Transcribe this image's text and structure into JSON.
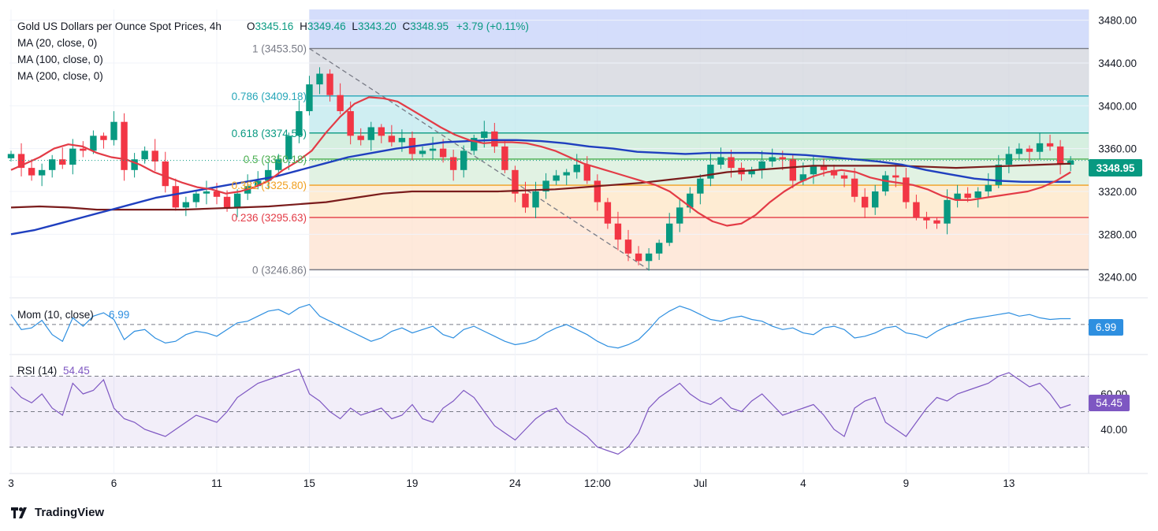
{
  "header": {
    "title": "Gold US Dollars per Ounce Spot Prices, 4h",
    "open_label": "O",
    "open": "3345.16",
    "high_label": "H",
    "high": "3349.46",
    "low_label": "L",
    "low": "3343.20",
    "close_label": "C",
    "close": "3348.95",
    "change": "+3.79 (+0.11%)"
  },
  "legend": {
    "ma20": "MA (20, close, 0)",
    "ma100": "MA (100, close, 0)",
    "ma200": "MA (200, close, 0)"
  },
  "colors": {
    "up": "#089981",
    "down": "#f23645",
    "ma20": "#e33b46",
    "ma100": "#1f3fbf",
    "ma200": "#7a1c1c",
    "mom": "#2e8fe0",
    "rsi": "#7e57c2",
    "grid": "#f0f3fa"
  },
  "price_badge": "3348.95",
  "mom_badge": "6.99",
  "rsi_badge": "54.45",
  "brand": "TradingView",
  "chart_data": {
    "type": "candlestick",
    "title": "Gold US Dollars per Ounce Spot Prices, 4h",
    "price_axis": {
      "ticks": [
        "3480.00",
        "3440.00",
        "3400.00",
        "3360.00",
        "3320.00",
        "3280.00",
        "3240.00"
      ],
      "tick_values": [
        3480,
        3440,
        3400,
        3360,
        3320,
        3280,
        3240
      ],
      "ylim": [
        3228,
        3490
      ]
    },
    "x_axis": {
      "labels": [
        "3",
        "6",
        "11",
        "15",
        "19",
        "24",
        "12:00",
        "Jul",
        "4",
        "9",
        "13"
      ],
      "label_bars": [
        0,
        10,
        20,
        29,
        39,
        49,
        57,
        67,
        77,
        87,
        97
      ]
    },
    "fibonacci": [
      {
        "level": "1",
        "price": 3453.5,
        "label": "1 (3453.50)",
        "text_color": "#787b86",
        "line_color": "#787b86"
      },
      {
        "level": "0.786",
        "price": 3409.18,
        "label": "0.786 (3409.18)",
        "text_color": "#26a6b8",
        "line_color": "#26a6b8"
      },
      {
        "level": "0.618",
        "price": 3374.56,
        "label": "0.618 (3374.56)",
        "text_color": "#089981",
        "line_color": "#089981"
      },
      {
        "level": "0.5",
        "price": 3350.18,
        "label": "0.5 (3350.18)",
        "text_color": "#4caf50",
        "line_color": "#4caf50"
      },
      {
        "level": "0.382",
        "price": 3325.8,
        "label": "0.382 (3325.80)",
        "text_color": "#f0a020",
        "line_color": "#f0a020"
      },
      {
        "level": "0.236",
        "price": 3295.63,
        "label": "0.236 (3295.63)",
        "text_color": "#e33b46",
        "line_color": "#e33b46"
      },
      {
        "level": "0",
        "price": 3246.86,
        "label": "0 (3246.86)",
        "text_color": "#787b86",
        "line_color": "#787b86"
      }
    ],
    "fib_zones": [
      "#d1d4dc",
      "#bfe8ee",
      "#c8ead6",
      "#d7eed9",
      "#fde6c4",
      "#fde2cf",
      "#f9c9cd"
    ],
    "closes": [
      3355,
      3342,
      3335,
      3340,
      3350,
      3345,
      3360,
      3358,
      3372,
      3368,
      3385,
      3340,
      3350,
      3358,
      3348,
      3325,
      3305,
      3310,
      3318,
      3320,
      3315,
      3305,
      3318,
      3325,
      3330,
      3340,
      3350,
      3372,
      3395,
      3420,
      3430,
      3410,
      3395,
      3372,
      3368,
      3380,
      3372,
      3366,
      3370,
      3355,
      3358,
      3360,
      3352,
      3340,
      3358,
      3370,
      3376,
      3362,
      3340,
      3318,
      3305,
      3320,
      3330,
      3335,
      3338,
      3345,
      3330,
      3310,
      3290,
      3275,
      3262,
      3255,
      3262,
      3272,
      3290,
      3305,
      3318,
      3332,
      3345,
      3352,
      3342,
      3336,
      3340,
      3348,
      3352,
      3350,
      3330,
      3336,
      3344,
      3340,
      3335,
      3332,
      3315,
      3305,
      3320,
      3335,
      3333,
      3310,
      3296,
      3293,
      3290,
      3312,
      3318,
      3314,
      3320,
      3326,
      3345,
      3355,
      3360,
      3357,
      3365,
      3362,
      3345,
      3349
    ],
    "ma20": [
      3340,
      3346,
      3352,
      3360,
      3364,
      3362,
      3356,
      3352,
      3350,
      3345,
      3338,
      3333,
      3328,
      3324,
      3322,
      3318,
      3320,
      3324,
      3330,
      3340,
      3348,
      3358,
      3375,
      3390,
      3402,
      3408,
      3407,
      3404,
      3396,
      3388,
      3380,
      3373,
      3368,
      3365,
      3366,
      3366,
      3365,
      3362,
      3358,
      3352,
      3346,
      3342,
      3338,
      3334,
      3330,
      3326,
      3320,
      3310,
      3300,
      3292,
      3288,
      3290,
      3298,
      3310,
      3320,
      3328,
      3334,
      3338,
      3340,
      3338,
      3333,
      3330,
      3328,
      3326,
      3322,
      3316,
      3312,
      3312,
      3314,
      3316,
      3318,
      3320,
      3324,
      3330,
      3338
    ],
    "ma100": [
      3280,
      3284,
      3290,
      3296,
      3302,
      3308,
      3314,
      3318,
      3322,
      3326,
      3330,
      3334,
      3340,
      3346,
      3352,
      3356,
      3360,
      3363,
      3366,
      3367,
      3368,
      3368,
      3367,
      3365,
      3362,
      3360,
      3357,
      3356,
      3355,
      3356,
      3356,
      3356,
      3355,
      3354,
      3352,
      3350,
      3348,
      3345,
      3340,
      3336,
      3332,
      3330,
      3329,
      3329,
      3329
    ],
    "ma200": [
      3305,
      3306,
      3305,
      3303,
      3303,
      3303,
      3303,
      3304,
      3305,
      3306,
      3308,
      3310,
      3314,
      3318,
      3320,
      3320,
      3320,
      3320,
      3321,
      3322,
      3324,
      3326,
      3328,
      3331,
      3334,
      3338,
      3340,
      3342,
      3344,
      3344,
      3344,
      3344,
      3343,
      3342,
      3343,
      3344,
      3345,
      3346
    ],
    "momentum": {
      "label": "Mom (10, close)",
      "value": "6.99",
      "values": [
        12,
        -6,
        -4,
        5,
        -12,
        -20,
        8,
        -2,
        10,
        14,
        6,
        -18,
        -8,
        -6,
        -16,
        -22,
        -20,
        -12,
        -8,
        -10,
        -14,
        -6,
        2,
        4,
        10,
        16,
        18,
        12,
        20,
        24,
        10,
        4,
        -2,
        -8,
        -14,
        -20,
        -16,
        -8,
        -4,
        -10,
        -6,
        -2,
        -12,
        -16,
        -6,
        -2,
        -8,
        -14,
        -20,
        -24,
        -22,
        -18,
        -10,
        -4,
        0,
        -6,
        -12,
        -20,
        -26,
        -28,
        -24,
        -18,
        -6,
        8,
        16,
        22,
        18,
        12,
        6,
        4,
        8,
        10,
        6,
        4,
        -2,
        -6,
        -4,
        -10,
        -12,
        -4,
        -2,
        -6,
        -16,
        -14,
        -10,
        -4,
        -2,
        -10,
        -12,
        -16,
        -8,
        -2,
        2,
        6,
        8,
        10,
        12,
        14,
        10,
        12,
        8,
        6,
        7,
        7
      ]
    },
    "rsi": {
      "label": "RSI (14)",
      "value": "54.45",
      "upper": 70,
      "lower": 30,
      "mid": 50,
      "ticks": [
        "60.00",
        "40.00"
      ],
      "tick_values": [
        60,
        40
      ],
      "values": [
        64,
        58,
        55,
        60,
        52,
        48,
        66,
        60,
        62,
        68,
        52,
        46,
        44,
        40,
        38,
        36,
        40,
        44,
        48,
        46,
        44,
        50,
        58,
        62,
        66,
        68,
        70,
        72,
        74,
        60,
        56,
        50,
        46,
        52,
        48,
        50,
        52,
        46,
        48,
        54,
        46,
        44,
        52,
        56,
        62,
        58,
        50,
        42,
        38,
        34,
        40,
        46,
        50,
        52,
        44,
        40,
        36,
        30,
        28,
        26,
        30,
        38,
        52,
        58,
        62,
        66,
        60,
        56,
        54,
        58,
        52,
        50,
        56,
        60,
        54,
        48,
        50,
        52,
        54,
        48,
        40,
        36,
        52,
        56,
        58,
        44,
        40,
        36,
        44,
        52,
        58,
        56,
        60,
        62,
        64,
        66,
        70,
        72,
        68,
        64,
        66,
        60,
        52,
        54
      ]
    }
  }
}
